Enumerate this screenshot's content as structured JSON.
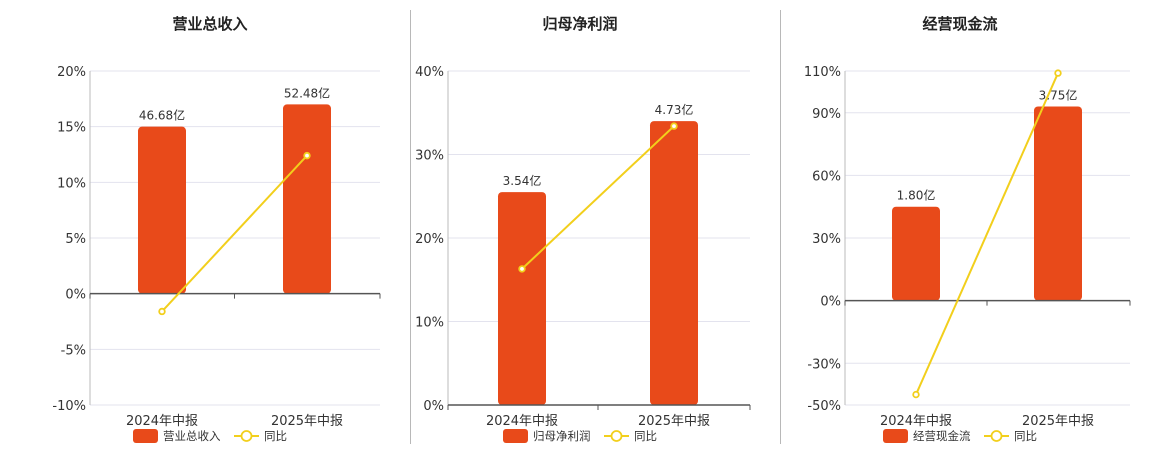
{
  "colors": {
    "bar": "#e84a1a",
    "line": "#f2cf1c",
    "grid": "#e3e3ee",
    "axis": "#555555",
    "text": "#333333"
  },
  "chart_data": [
    {
      "type": "bar",
      "title": "营业总收入",
      "categories": [
        "2024年中报",
        "2025年中报"
      ],
      "y_ticks": [
        "20%",
        "15%",
        "10%",
        "5%",
        "0%",
        "-5%",
        "-10%"
      ],
      "ylim": [
        -10,
        20
      ],
      "series": [
        {
          "name": "营业总收入",
          "type": "bar",
          "values": [
            15,
            17
          ],
          "labels": [
            "46.68亿",
            "52.48亿"
          ]
        },
        {
          "name": "同比",
          "type": "line",
          "values": [
            -1.6,
            12.4
          ]
        }
      ],
      "legend": "bottom"
    },
    {
      "type": "bar",
      "title": "归母净利润",
      "categories": [
        "2024年中报",
        "2025年中报"
      ],
      "y_ticks": [
        "40%",
        "30%",
        "20%",
        "10%",
        "0%"
      ],
      "ylim": [
        0,
        40
      ],
      "series": [
        {
          "name": "归母净利润",
          "type": "bar",
          "values": [
            25.5,
            34
          ],
          "labels": [
            "3.54亿",
            "4.73亿"
          ]
        },
        {
          "name": "同比",
          "type": "line",
          "values": [
            16.3,
            33.4
          ]
        }
      ],
      "legend": "bottom"
    },
    {
      "type": "bar",
      "title": "经营现金流",
      "categories": [
        "2024年中报",
        "2025年中报"
      ],
      "y_ticks": [
        "110%",
        "90%",
        "60%",
        "30%",
        "0%",
        "-30%",
        "-50%"
      ],
      "y_tick_values": [
        110,
        90,
        60,
        30,
        0,
        -30,
        -50
      ],
      "ylim": [
        -50,
        110
      ],
      "series": [
        {
          "name": "经营现金流",
          "type": "bar",
          "values": [
            45,
            93
          ],
          "labels": [
            "1.80亿",
            "3.75亿"
          ]
        },
        {
          "name": "同比",
          "type": "line",
          "values": [
            -45,
            109
          ]
        }
      ],
      "legend": "bottom"
    }
  ]
}
